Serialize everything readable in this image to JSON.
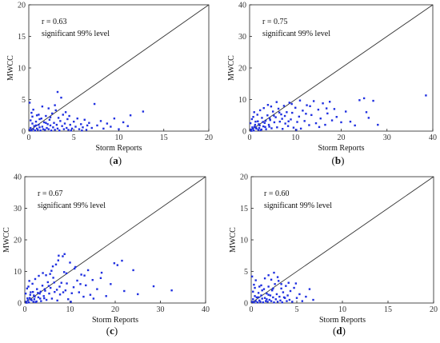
{
  "style": {
    "point_color": "#1f2fe0",
    "axis_color": "#222222",
    "line_color": "#333333"
  },
  "chart_data": [
    {
      "panel": "(a)",
      "type": "scatter",
      "xlabel": "Storm Reports",
      "ylabel": "MWCC",
      "xlim": [
        0,
        20
      ],
      "ylim": [
        0,
        20
      ],
      "xticks": [
        0,
        5,
        10,
        15,
        20
      ],
      "yticks": [
        0,
        5,
        10,
        15,
        20
      ],
      "annotation": [
        "r = 0.63",
        "significant 99% level"
      ],
      "reference_line": "y = x",
      "points": [
        [
          0.1,
          0.2
        ],
        [
          0.2,
          0.5
        ],
        [
          0.3,
          0.1
        ],
        [
          0.4,
          1.2
        ],
        [
          0.5,
          0.3
        ],
        [
          0.6,
          0.8
        ],
        [
          0.7,
          0.1
        ],
        [
          0.8,
          1.5
        ],
        [
          0.9,
          0.4
        ],
        [
          1.0,
          0.2
        ],
        [
          1.1,
          1.0
        ],
        [
          1.2,
          0.6
        ],
        [
          1.3,
          0.1
        ],
        [
          1.4,
          2.0
        ],
        [
          1.5,
          0.7
        ],
        [
          1.6,
          0.3
        ],
        [
          1.7,
          1.4
        ],
        [
          1.8,
          0.2
        ],
        [
          1.9,
          2.4
        ],
        [
          2.0,
          0.5
        ],
        [
          2.1,
          1.1
        ],
        [
          2.2,
          0.3
        ],
        [
          2.3,
          1.8
        ],
        [
          2.4,
          0.9
        ],
        [
          2.5,
          0.1
        ],
        [
          2.6,
          2.8
        ],
        [
          2.7,
          0.6
        ],
        [
          2.8,
          1.3
        ],
        [
          2.9,
          0.2
        ],
        [
          3.0,
          3.3
        ],
        [
          3.1,
          1.0
        ],
        [
          3.2,
          0.4
        ],
        [
          3.3,
          2.1
        ],
        [
          3.4,
          0.1
        ],
        [
          3.5,
          1.6
        ],
        [
          3.6,
          5.3
        ],
        [
          3.7,
          0.8
        ],
        [
          3.8,
          2.6
        ],
        [
          3.9,
          0.3
        ],
        [
          4.0,
          1.2
        ],
        [
          4.1,
          3.0
        ],
        [
          4.2,
          0.5
        ],
        [
          4.3,
          1.9
        ],
        [
          4.4,
          0.2
        ],
        [
          4.5,
          2.4
        ],
        [
          4.6,
          1.0
        ],
        [
          4.8,
          0.4
        ],
        [
          5.0,
          1.5
        ],
        [
          5.2,
          0.7
        ],
        [
          5.4,
          2.0
        ],
        [
          5.6,
          0.3
        ],
        [
          5.8,
          1.1
        ],
        [
          6.0,
          0.6
        ],
        [
          6.2,
          1.8
        ],
        [
          6.4,
          0.2
        ],
        [
          6.7,
          1.3
        ],
        [
          7.0,
          0.5
        ],
        [
          7.3,
          4.3
        ],
        [
          7.6,
          0.9
        ],
        [
          8.0,
          1.6
        ],
        [
          8.3,
          0.4
        ],
        [
          8.7,
          1.2
        ],
        [
          9.1,
          0.7
        ],
        [
          9.5,
          2.0
        ],
        [
          10.0,
          0.3
        ],
        [
          10.5,
          1.4
        ],
        [
          11.0,
          0.8
        ],
        [
          11.3,
          2.5
        ],
        [
          12.7,
          3.1
        ],
        [
          0.3,
          2.9
        ],
        [
          0.5,
          3.4
        ],
        [
          0.2,
          1.7
        ],
        [
          1.1,
          2.6
        ],
        [
          1.5,
          3.9
        ],
        [
          2.2,
          3.6
        ],
        [
          2.9,
          4.1
        ],
        [
          3.2,
          6.2
        ],
        [
          0.8,
          0.9
        ],
        [
          1.2,
          1.9
        ],
        [
          1.9,
          1.3
        ],
        [
          2.4,
          2.2
        ],
        [
          4.7,
          0.1
        ],
        [
          5.9,
          0.1
        ],
        [
          6.5,
          0.9
        ],
        [
          0.1,
          4.5
        ],
        [
          0.4,
          2.3
        ],
        [
          0.9,
          2.5
        ]
      ]
    },
    {
      "panel": "(b)",
      "type": "scatter",
      "xlabel": "Storm Reports",
      "ylabel": "MWCC",
      "xlim": [
        0,
        40
      ],
      "ylim": [
        0,
        40
      ],
      "xticks": [
        0,
        10,
        20,
        30,
        40
      ],
      "yticks": [
        0,
        10,
        20,
        30,
        40
      ],
      "annotation": [
        "r = 0.75",
        "significant 99% level"
      ],
      "reference_line": "y = x",
      "points": [
        [
          0.3,
          0.5
        ],
        [
          0.6,
          1.2
        ],
        [
          0.9,
          0.2
        ],
        [
          1.2,
          2.0
        ],
        [
          1.5,
          0.8
        ],
        [
          1.8,
          3.1
        ],
        [
          2.1,
          1.0
        ],
        [
          2.4,
          0.3
        ],
        [
          2.7,
          4.2
        ],
        [
          3.0,
          1.5
        ],
        [
          3.3,
          2.6
        ],
        [
          3.6,
          0.6
        ],
        [
          3.9,
          5.0
        ],
        [
          4.2,
          2.0
        ],
        [
          4.5,
          3.5
        ],
        [
          4.8,
          0.9
        ],
        [
          5.1,
          6.2
        ],
        [
          5.4,
          2.8
        ],
        [
          5.7,
          4.4
        ],
        [
          6.0,
          1.2
        ],
        [
          6.3,
          7.1
        ],
        [
          6.6,
          3.0
        ],
        [
          6.9,
          5.3
        ],
        [
          7.2,
          0.7
        ],
        [
          7.5,
          8.0
        ],
        [
          7.8,
          2.4
        ],
        [
          8.1,
          6.0
        ],
        [
          8.4,
          1.6
        ],
        [
          8.7,
          9.0
        ],
        [
          9.0,
          3.7
        ],
        [
          9.3,
          5.8
        ],
        [
          9.6,
          1.1
        ],
        [
          10.0,
          7.4
        ],
        [
          10.4,
          2.9
        ],
        [
          10.8,
          4.6
        ],
        [
          11.2,
          0.8
        ],
        [
          11.6,
          6.5
        ],
        [
          12.0,
          3.2
        ],
        [
          12.5,
          8.2
        ],
        [
          13.0,
          1.9
        ],
        [
          13.5,
          5.1
        ],
        [
          14.0,
          9.5
        ],
        [
          14.5,
          2.5
        ],
        [
          15.0,
          6.8
        ],
        [
          15.5,
          4.0
        ],
        [
          16.0,
          8.8
        ],
        [
          16.5,
          2.0
        ],
        [
          17.0,
          5.6
        ],
        [
          17.5,
          9.3
        ],
        [
          18.0,
          3.4
        ],
        [
          18.5,
          7.0
        ],
        [
          19.0,
          4.5
        ],
        [
          20.0,
          2.8
        ],
        [
          21.0,
          6.2
        ],
        [
          22.0,
          3.0
        ],
        [
          23.0,
          1.8
        ],
        [
          24.0,
          9.8
        ],
        [
          25.0,
          10.4
        ],
        [
          25.5,
          6.0
        ],
        [
          26.0,
          4.2
        ],
        [
          27.0,
          9.6
        ],
        [
          28.0,
          2.0
        ],
        [
          38.5,
          11.3
        ],
        [
          0.2,
          2.5
        ],
        [
          0.5,
          3.8
        ],
        [
          0.8,
          4.5
        ],
        [
          1.0,
          6.0
        ],
        [
          1.4,
          1.0
        ],
        [
          1.7,
          5.2
        ],
        [
          2.0,
          2.2
        ],
        [
          2.3,
          6.6
        ],
        [
          2.6,
          0.5
        ],
        [
          3.1,
          7.3
        ],
        [
          3.5,
          3.3
        ],
        [
          4.0,
          8.3
        ],
        [
          4.3,
          1.4
        ],
        [
          4.7,
          7.8
        ],
        [
          5.3,
          4.9
        ],
        [
          5.9,
          9.2
        ],
        [
          6.5,
          5.9
        ],
        [
          7.1,
          3.9
        ],
        [
          7.7,
          4.8
        ],
        [
          8.5,
          3.1
        ],
        [
          9.2,
          8.6
        ],
        [
          10.2,
          0.4
        ],
        [
          11.0,
          9.7
        ],
        [
          12.3,
          5.5
        ],
        [
          13.2,
          7.9
        ],
        [
          15.2,
          1.3
        ],
        [
          16.8,
          7.2
        ],
        [
          0.4,
          0.1
        ],
        [
          0.7,
          0.8
        ],
        [
          1.1,
          1.4
        ],
        [
          1.3,
          3.0
        ],
        [
          1.9,
          0.4
        ],
        [
          2.2,
          1.8
        ],
        [
          2.9,
          2.9
        ],
        [
          3.4,
          1.3
        ],
        [
          4.4,
          4.0
        ]
      ]
    },
    {
      "panel": "(c)",
      "type": "scatter",
      "xlabel": "Storm Reports",
      "ylabel": "MWCC",
      "xlim": [
        0,
        40
      ],
      "ylim": [
        0,
        40
      ],
      "xticks": [
        0,
        10,
        20,
        30,
        40
      ],
      "yticks": [
        0,
        10,
        20,
        30,
        40
      ],
      "annotation": [
        "r = 0.67",
        "significant 99% level"
      ],
      "reference_line": "y = x",
      "points": [
        [
          0.3,
          0.4
        ],
        [
          0.6,
          1.5
        ],
        [
          0.9,
          0.2
        ],
        [
          1.2,
          2.6
        ],
        [
          1.5,
          0.9
        ],
        [
          1.8,
          3.5
        ],
        [
          2.1,
          1.2
        ],
        [
          2.4,
          0.3
        ],
        [
          2.7,
          4.4
        ],
        [
          3.0,
          1.8
        ],
        [
          3.3,
          3.0
        ],
        [
          3.6,
          0.6
        ],
        [
          3.9,
          5.5
        ],
        [
          4.2,
          2.2
        ],
        [
          4.5,
          3.9
        ],
        [
          4.8,
          1.0
        ],
        [
          5.1,
          6.6
        ],
        [
          5.4,
          3.0
        ],
        [
          5.7,
          4.8
        ],
        [
          6.0,
          1.4
        ],
        [
          6.3,
          8.0
        ],
        [
          6.6,
          3.5
        ],
        [
          6.9,
          12.2
        ],
        [
          7.2,
          0.8
        ],
        [
          7.5,
          15.0
        ],
        [
          7.8,
          2.7
        ],
        [
          8.1,
          6.4
        ],
        [
          8.4,
          14.8
        ],
        [
          8.7,
          9.8
        ],
        [
          9.0,
          4.0
        ],
        [
          9.3,
          6.2
        ],
        [
          9.6,
          1.2
        ],
        [
          10.0,
          12.8
        ],
        [
          10.4,
          3.1
        ],
        [
          10.8,
          5.0
        ],
        [
          11.2,
          11.4
        ],
        [
          11.6,
          7.1
        ],
        [
          12.0,
          3.4
        ],
        [
          12.5,
          9.0
        ],
        [
          13.0,
          2.0
        ],
        [
          13.5,
          5.6
        ],
        [
          14.0,
          10.4
        ],
        [
          14.5,
          2.6
        ],
        [
          15.0,
          7.3
        ],
        [
          16.0,
          4.4
        ],
        [
          17.0,
          9.6
        ],
        [
          18.0,
          2.2
        ],
        [
          19.0,
          6.0
        ],
        [
          19.8,
          12.6
        ],
        [
          20.5,
          12.0
        ],
        [
          21.5,
          13.4
        ],
        [
          22.0,
          3.8
        ],
        [
          24.0,
          10.4
        ],
        [
          25.0,
          2.8
        ],
        [
          28.5,
          5.3
        ],
        [
          32.5,
          4.0
        ],
        [
          0.2,
          3.0
        ],
        [
          0.5,
          4.6
        ],
        [
          0.8,
          5.2
        ],
        [
          1.0,
          7.0
        ],
        [
          1.4,
          1.1
        ],
        [
          1.7,
          6.1
        ],
        [
          2.0,
          2.4
        ],
        [
          2.3,
          7.6
        ],
        [
          2.6,
          0.5
        ],
        [
          3.1,
          8.6
        ],
        [
          3.5,
          3.6
        ],
        [
          4.0,
          9.5
        ],
        [
          4.3,
          1.5
        ],
        [
          4.7,
          8.8
        ],
        [
          5.3,
          5.4
        ],
        [
          5.9,
          10.2
        ],
        [
          6.5,
          6.5
        ],
        [
          7.1,
          4.2
        ],
        [
          7.7,
          5.2
        ],
        [
          8.5,
          3.4
        ],
        [
          9.2,
          9.4
        ],
        [
          10.2,
          0.4
        ],
        [
          11.0,
          10.9
        ],
        [
          12.3,
          6.0
        ],
        [
          13.2,
          8.7
        ],
        [
          15.2,
          1.4
        ],
        [
          16.8,
          7.9
        ],
        [
          0.4,
          0.1
        ],
        [
          0.7,
          0.9
        ],
        [
          1.1,
          1.6
        ],
        [
          1.3,
          3.4
        ],
        [
          1.9,
          0.4
        ],
        [
          2.2,
          2.0
        ],
        [
          2.9,
          3.2
        ],
        [
          3.4,
          1.4
        ],
        [
          4.4,
          4.4
        ],
        [
          6.2,
          11.6
        ],
        [
          7.4,
          13.5
        ],
        [
          8.8,
          15.5
        ],
        [
          5.6,
          9.2
        ]
      ]
    },
    {
      "panel": "(d)",
      "type": "scatter",
      "xlabel": "Storm Reports",
      "ylabel": "MWCC",
      "xlim": [
        0,
        20
      ],
      "ylim": [
        0,
        20
      ],
      "xticks": [
        0,
        5,
        10,
        15,
        20
      ],
      "yticks": [
        0,
        5,
        10,
        15,
        20
      ],
      "annotation": [
        "r = 0.60",
        "significant 99% level"
      ],
      "reference_line": "y = x",
      "points": [
        [
          0.1,
          0.2
        ],
        [
          0.2,
          0.6
        ],
        [
          0.3,
          0.1
        ],
        [
          0.4,
          1.1
        ],
        [
          0.5,
          0.3
        ],
        [
          0.6,
          0.9
        ],
        [
          0.7,
          0.1
        ],
        [
          0.8,
          1.6
        ],
        [
          0.9,
          0.4
        ],
        [
          1.0,
          0.2
        ],
        [
          1.1,
          1.2
        ],
        [
          1.2,
          0.7
        ],
        [
          1.3,
          0.1
        ],
        [
          1.4,
          2.2
        ],
        [
          1.5,
          0.8
        ],
        [
          1.6,
          0.3
        ],
        [
          1.7,
          1.5
        ],
        [
          1.8,
          0.2
        ],
        [
          1.9,
          2.6
        ],
        [
          2.0,
          0.5
        ],
        [
          2.1,
          1.2
        ],
        [
          2.2,
          0.3
        ],
        [
          2.3,
          2.0
        ],
        [
          2.4,
          0.9
        ],
        [
          2.5,
          0.1
        ],
        [
          2.6,
          3.0
        ],
        [
          2.7,
          0.6
        ],
        [
          2.8,
          1.4
        ],
        [
          2.9,
          0.2
        ],
        [
          3.0,
          3.5
        ],
        [
          3.1,
          1.0
        ],
        [
          3.2,
          0.4
        ],
        [
          3.3,
          2.3
        ],
        [
          3.4,
          0.1
        ],
        [
          3.5,
          1.7
        ],
        [
          3.7,
          0.8
        ],
        [
          3.8,
          2.7
        ],
        [
          3.9,
          0.3
        ],
        [
          4.0,
          1.2
        ],
        [
          4.1,
          3.2
        ],
        [
          4.2,
          0.5
        ],
        [
          4.3,
          1.9
        ],
        [
          4.5,
          0.2
        ],
        [
          4.7,
          2.4
        ],
        [
          5.0,
          0.8
        ],
        [
          5.3,
          1.4
        ],
        [
          5.6,
          0.3
        ],
        [
          6.0,
          1.0
        ],
        [
          6.4,
          2.2
        ],
        [
          6.8,
          0.5
        ],
        [
          0.3,
          2.9
        ],
        [
          0.5,
          3.6
        ],
        [
          0.2,
          1.8
        ],
        [
          1.1,
          2.8
        ],
        [
          1.5,
          3.9
        ],
        [
          1.9,
          4.4
        ],
        [
          2.2,
          3.7
        ],
        [
          2.5,
          4.8
        ],
        [
          2.9,
          4.1
        ],
        [
          3.3,
          3.0
        ],
        [
          0.8,
          0.9
        ],
        [
          1.2,
          2.0
        ],
        [
          1.9,
          1.3
        ],
        [
          2.4,
          2.3
        ],
        [
          0.1,
          4.2
        ],
        [
          0.4,
          2.4
        ],
        [
          0.9,
          2.6
        ],
        [
          4.9,
          3.1
        ],
        [
          3.6,
          0.9
        ],
        [
          1.7,
          0.6
        ]
      ]
    }
  ],
  "panel_labels": [
    "(a)",
    "(b)",
    "(c)",
    "(d)"
  ]
}
